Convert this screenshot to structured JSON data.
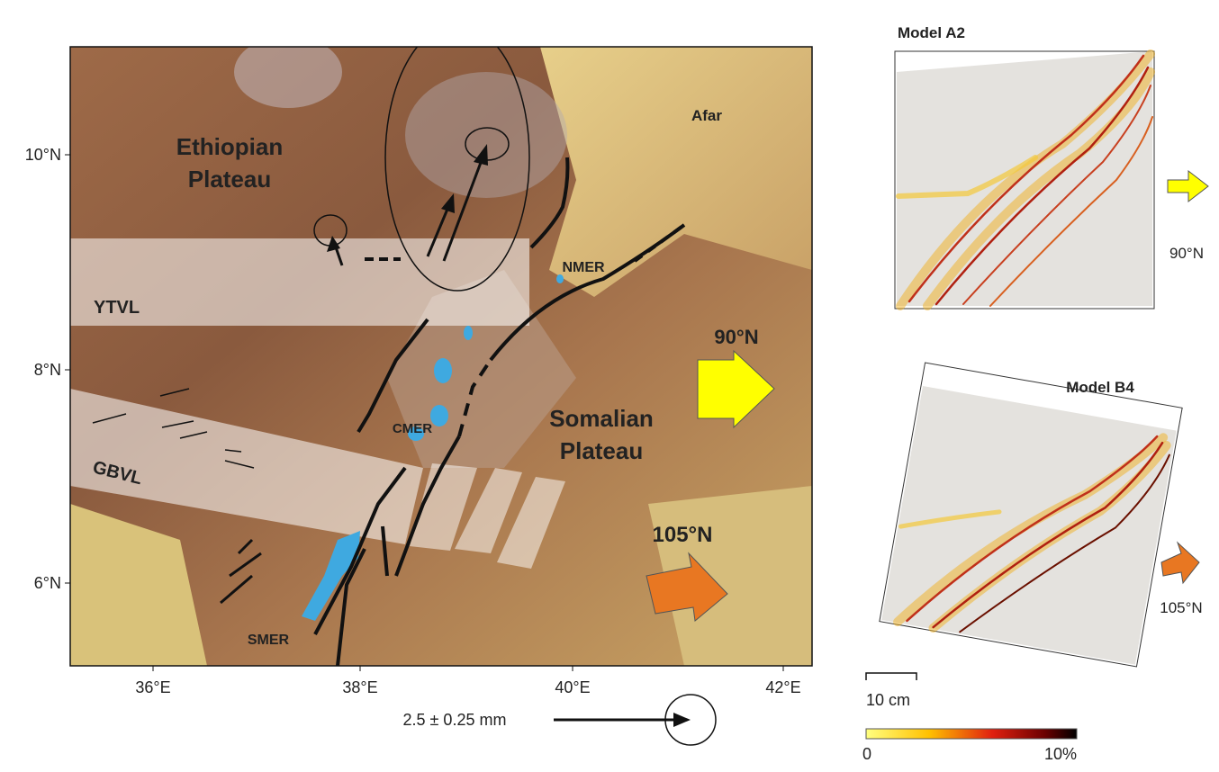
{
  "map": {
    "lat_labels": [
      "10°N",
      "8°N",
      "6°N"
    ],
    "lon_labels": [
      "36°E",
      "38°E",
      "40°E",
      "42°E"
    ],
    "ethiopian_plateau": [
      "Ethiopian",
      "Plateau"
    ],
    "afar": "Afar",
    "nmer": "NMER",
    "ytvl": "YTVL",
    "cmer": "CMER",
    "gbvl": "GBVL",
    "somalian_plateau": [
      "Somalian",
      "Plateau"
    ],
    "smer": "SMER",
    "arrow_90": "90°N",
    "arrow_105": "105°N",
    "gps_scale": "2.5 ± 0.25 mm"
  },
  "models": [
    {
      "title": "Model A2",
      "direction": "90°N"
    },
    {
      "title": "Model B4",
      "direction": "105°N"
    }
  ],
  "scale_bar": "10 cm",
  "colorbar": {
    "min": "0",
    "max": "10%"
  }
}
